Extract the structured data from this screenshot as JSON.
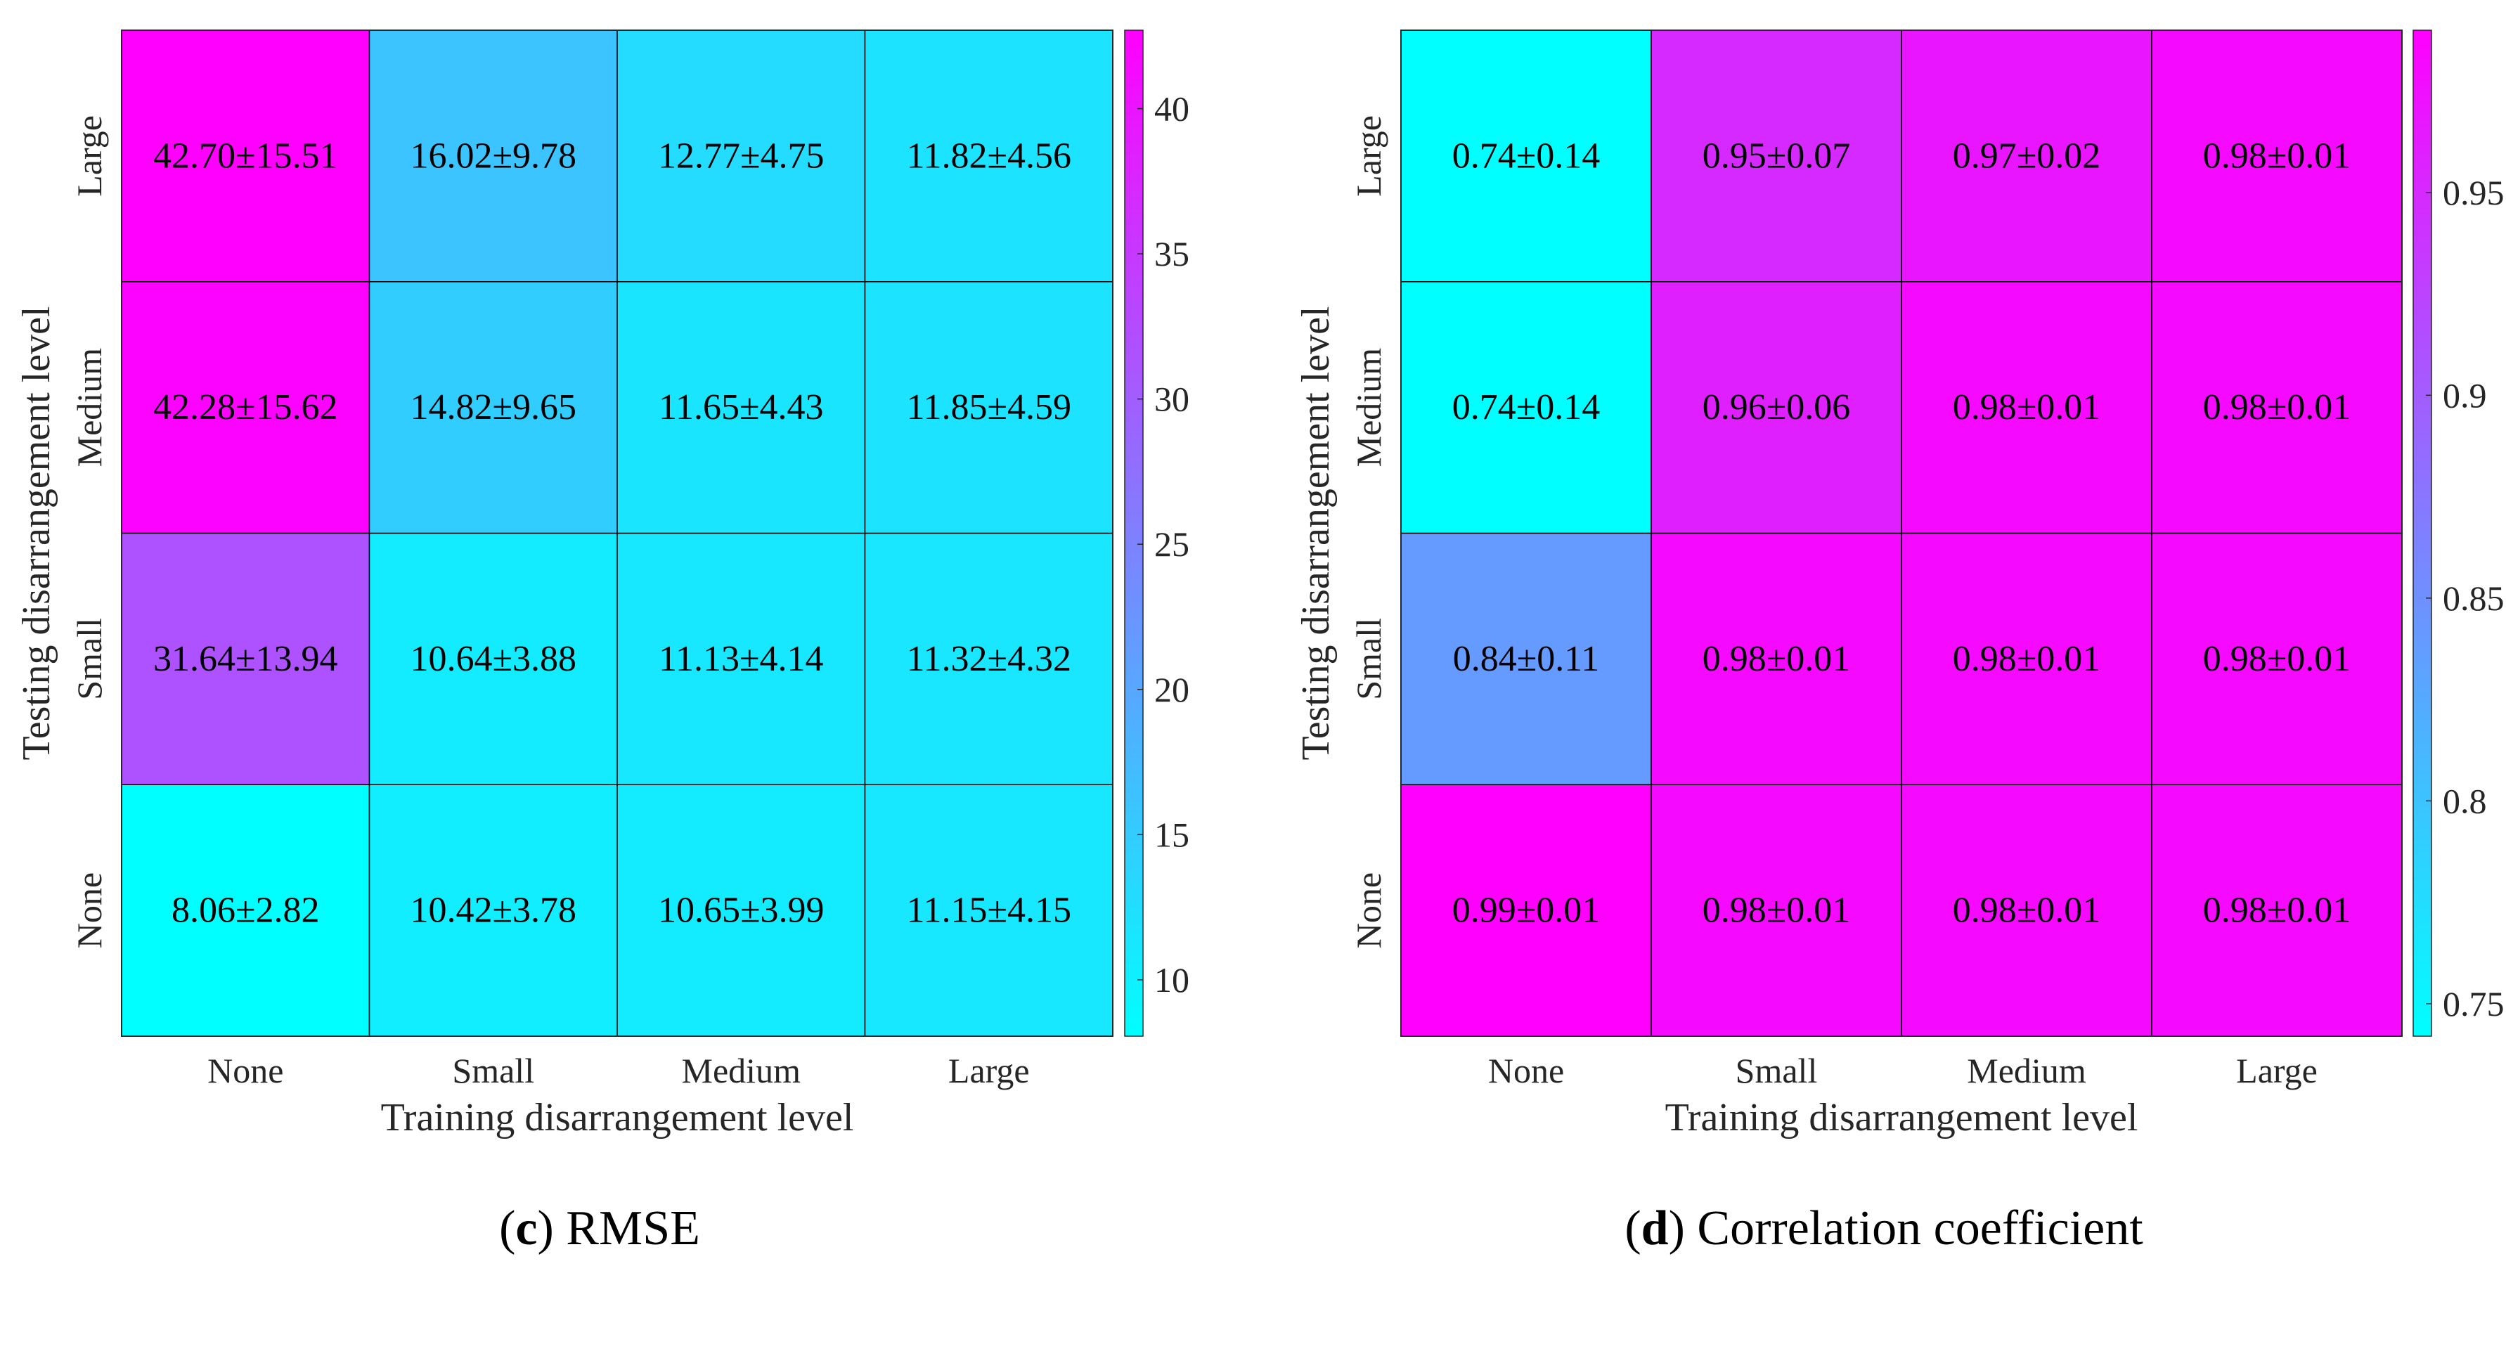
{
  "chart_data": [
    {
      "type": "heatmap",
      "caption_letter": "c",
      "caption_text": " RMSE",
      "xlabel": "Training disarrangement level",
      "ylabel": "Testing disarrangement level",
      "x_categories": [
        "None",
        "Small",
        "Medium",
        "Large"
      ],
      "y_categories": [
        "None",
        "Small",
        "Medium",
        "Large"
      ],
      "values": [
        [
          8.06,
          10.42,
          10.65,
          11.15
        ],
        [
          31.64,
          10.64,
          11.13,
          11.32
        ],
        [
          42.28,
          14.82,
          11.65,
          11.85
        ],
        [
          42.7,
          16.02,
          12.77,
          11.82
        ]
      ],
      "labels": [
        [
          "8.06±2.82",
          "10.42±3.78",
          "10.65±3.99",
          "11.15±4.15"
        ],
        [
          "31.64±13.94",
          "10.64±3.88",
          "11.13±4.14",
          "11.32±4.32"
        ],
        [
          "42.28±15.62",
          "14.82±9.65",
          "11.65±4.43",
          "11.85±4.59"
        ],
        [
          "42.70±15.51",
          "16.02±9.78",
          "12.77±4.75",
          "11.82±4.56"
        ]
      ],
      "colormap": "cool",
      "colorbar_range": [
        8.06,
        42.7
      ],
      "colorbar_ticks": [
        10,
        15,
        20,
        25,
        30,
        35,
        40
      ],
      "colorbar_tick_labels": [
        "10",
        "15",
        "20",
        "25",
        "30",
        "35",
        "40"
      ]
    },
    {
      "type": "heatmap",
      "caption_letter": "d",
      "caption_text": " Correlation coefficient",
      "xlabel": "Training disarrangement level",
      "ylabel": "Testing disarrangement level",
      "x_categories": [
        "None",
        "Small",
        "Medium",
        "Large"
      ],
      "y_categories": [
        "None",
        "Small",
        "Medium",
        "Large"
      ],
      "values": [
        [
          0.99,
          0.98,
          0.98,
          0.98
        ],
        [
          0.84,
          0.98,
          0.98,
          0.98
        ],
        [
          0.74,
          0.96,
          0.98,
          0.98
        ],
        [
          0.74,
          0.95,
          0.97,
          0.98
        ]
      ],
      "labels": [
        [
          "0.99±0.01",
          "0.98±0.01",
          "0.98±0.01",
          "0.98±0.01"
        ],
        [
          "0.84±0.11",
          "0.98±0.01",
          "0.98±0.01",
          "0.98±0.01"
        ],
        [
          "0.74±0.14",
          "0.96±0.06",
          "0.98±0.01",
          "0.98±0.01"
        ],
        [
          "0.74±0.14",
          "0.95±0.07",
          "0.97±0.02",
          "0.98±0.01"
        ]
      ],
      "colormap": "cool",
      "colorbar_range": [
        0.742,
        0.99
      ],
      "colorbar_ticks": [
        0.75,
        0.8,
        0.85,
        0.9,
        0.95
      ],
      "colorbar_tick_labels": [
        "0.75",
        "0.8",
        "0.85",
        "0.9",
        "0.95"
      ]
    }
  ]
}
